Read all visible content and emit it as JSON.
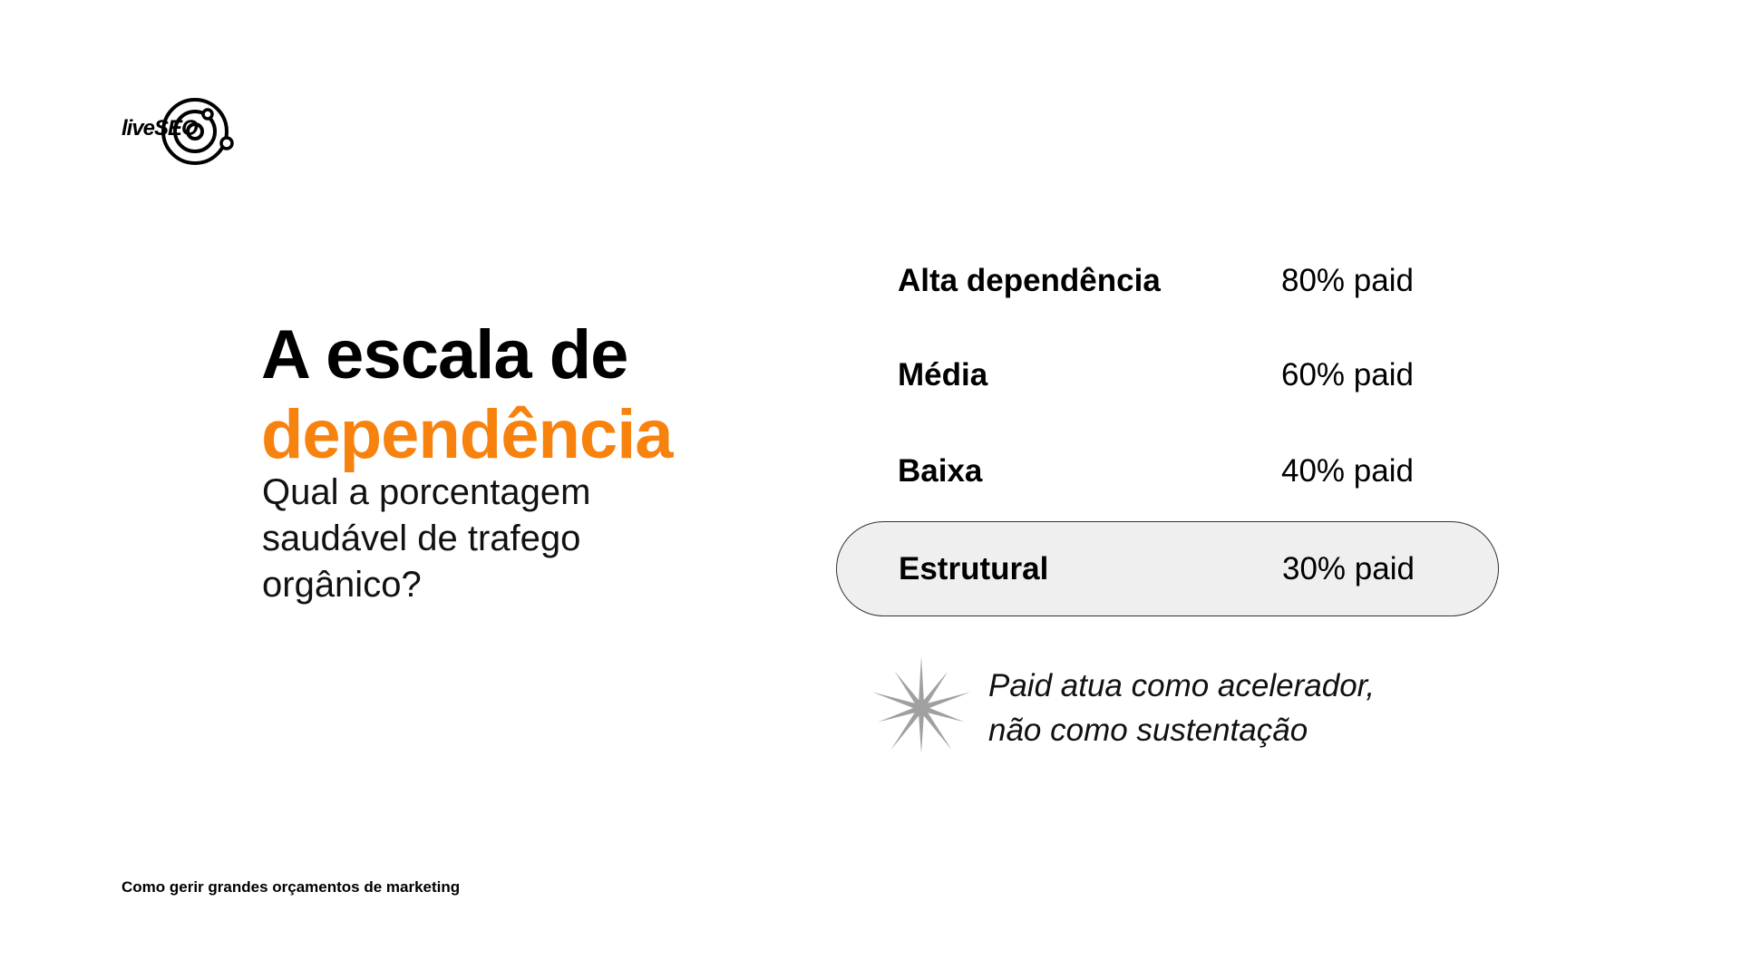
{
  "logo": {
    "text": "liveSEO"
  },
  "title": {
    "line1": "A escala de",
    "accent": "dependência"
  },
  "subtitle": "Qual a porcentagem saudável de trafego orgânico?",
  "scale": [
    {
      "label": "Alta dependência",
      "value": "80% paid",
      "highlighted": false
    },
    {
      "label": "Média",
      "value": "60% paid",
      "highlighted": false
    },
    {
      "label": "Baixa",
      "value": "40% paid",
      "highlighted": false
    },
    {
      "label": "Estrutural",
      "value": "30% paid",
      "highlighted": true
    }
  ],
  "note": {
    "line1": "Paid atua como acelerador,",
    "line2": "não como sustentação",
    "icon": "starburst-icon"
  },
  "footer": "Como gerir grandes orçamentos de marketing",
  "colors": {
    "accent": "#f7820e",
    "highlight_bg": "#efefef",
    "star": "#a0a0a0"
  }
}
